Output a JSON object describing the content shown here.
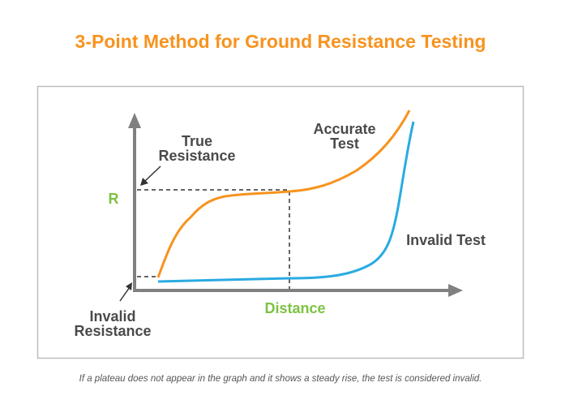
{
  "title": "3-Point Method for Ground Resistance Testing",
  "caption": "If a plateau does not appear in the graph and it shows a steady rise, the test is considered invalid.",
  "diagram": {
    "y_axis_label": "R",
    "x_axis_label": "Distance",
    "true_resistance_label": [
      "True",
      "Resistance"
    ],
    "invalid_resistance_label": [
      "Invalid",
      "Resistance"
    ],
    "accurate_test_label": [
      "Accurate",
      "Test"
    ],
    "invalid_test_label": "Invalid Test",
    "colors": {
      "title": "#f7931e",
      "accurate_curve": "#f7931e",
      "invalid_curve": "#29abe2",
      "axis_labels": "#7dc242",
      "axes": "#808080",
      "text": "#4a4a4a"
    }
  }
}
